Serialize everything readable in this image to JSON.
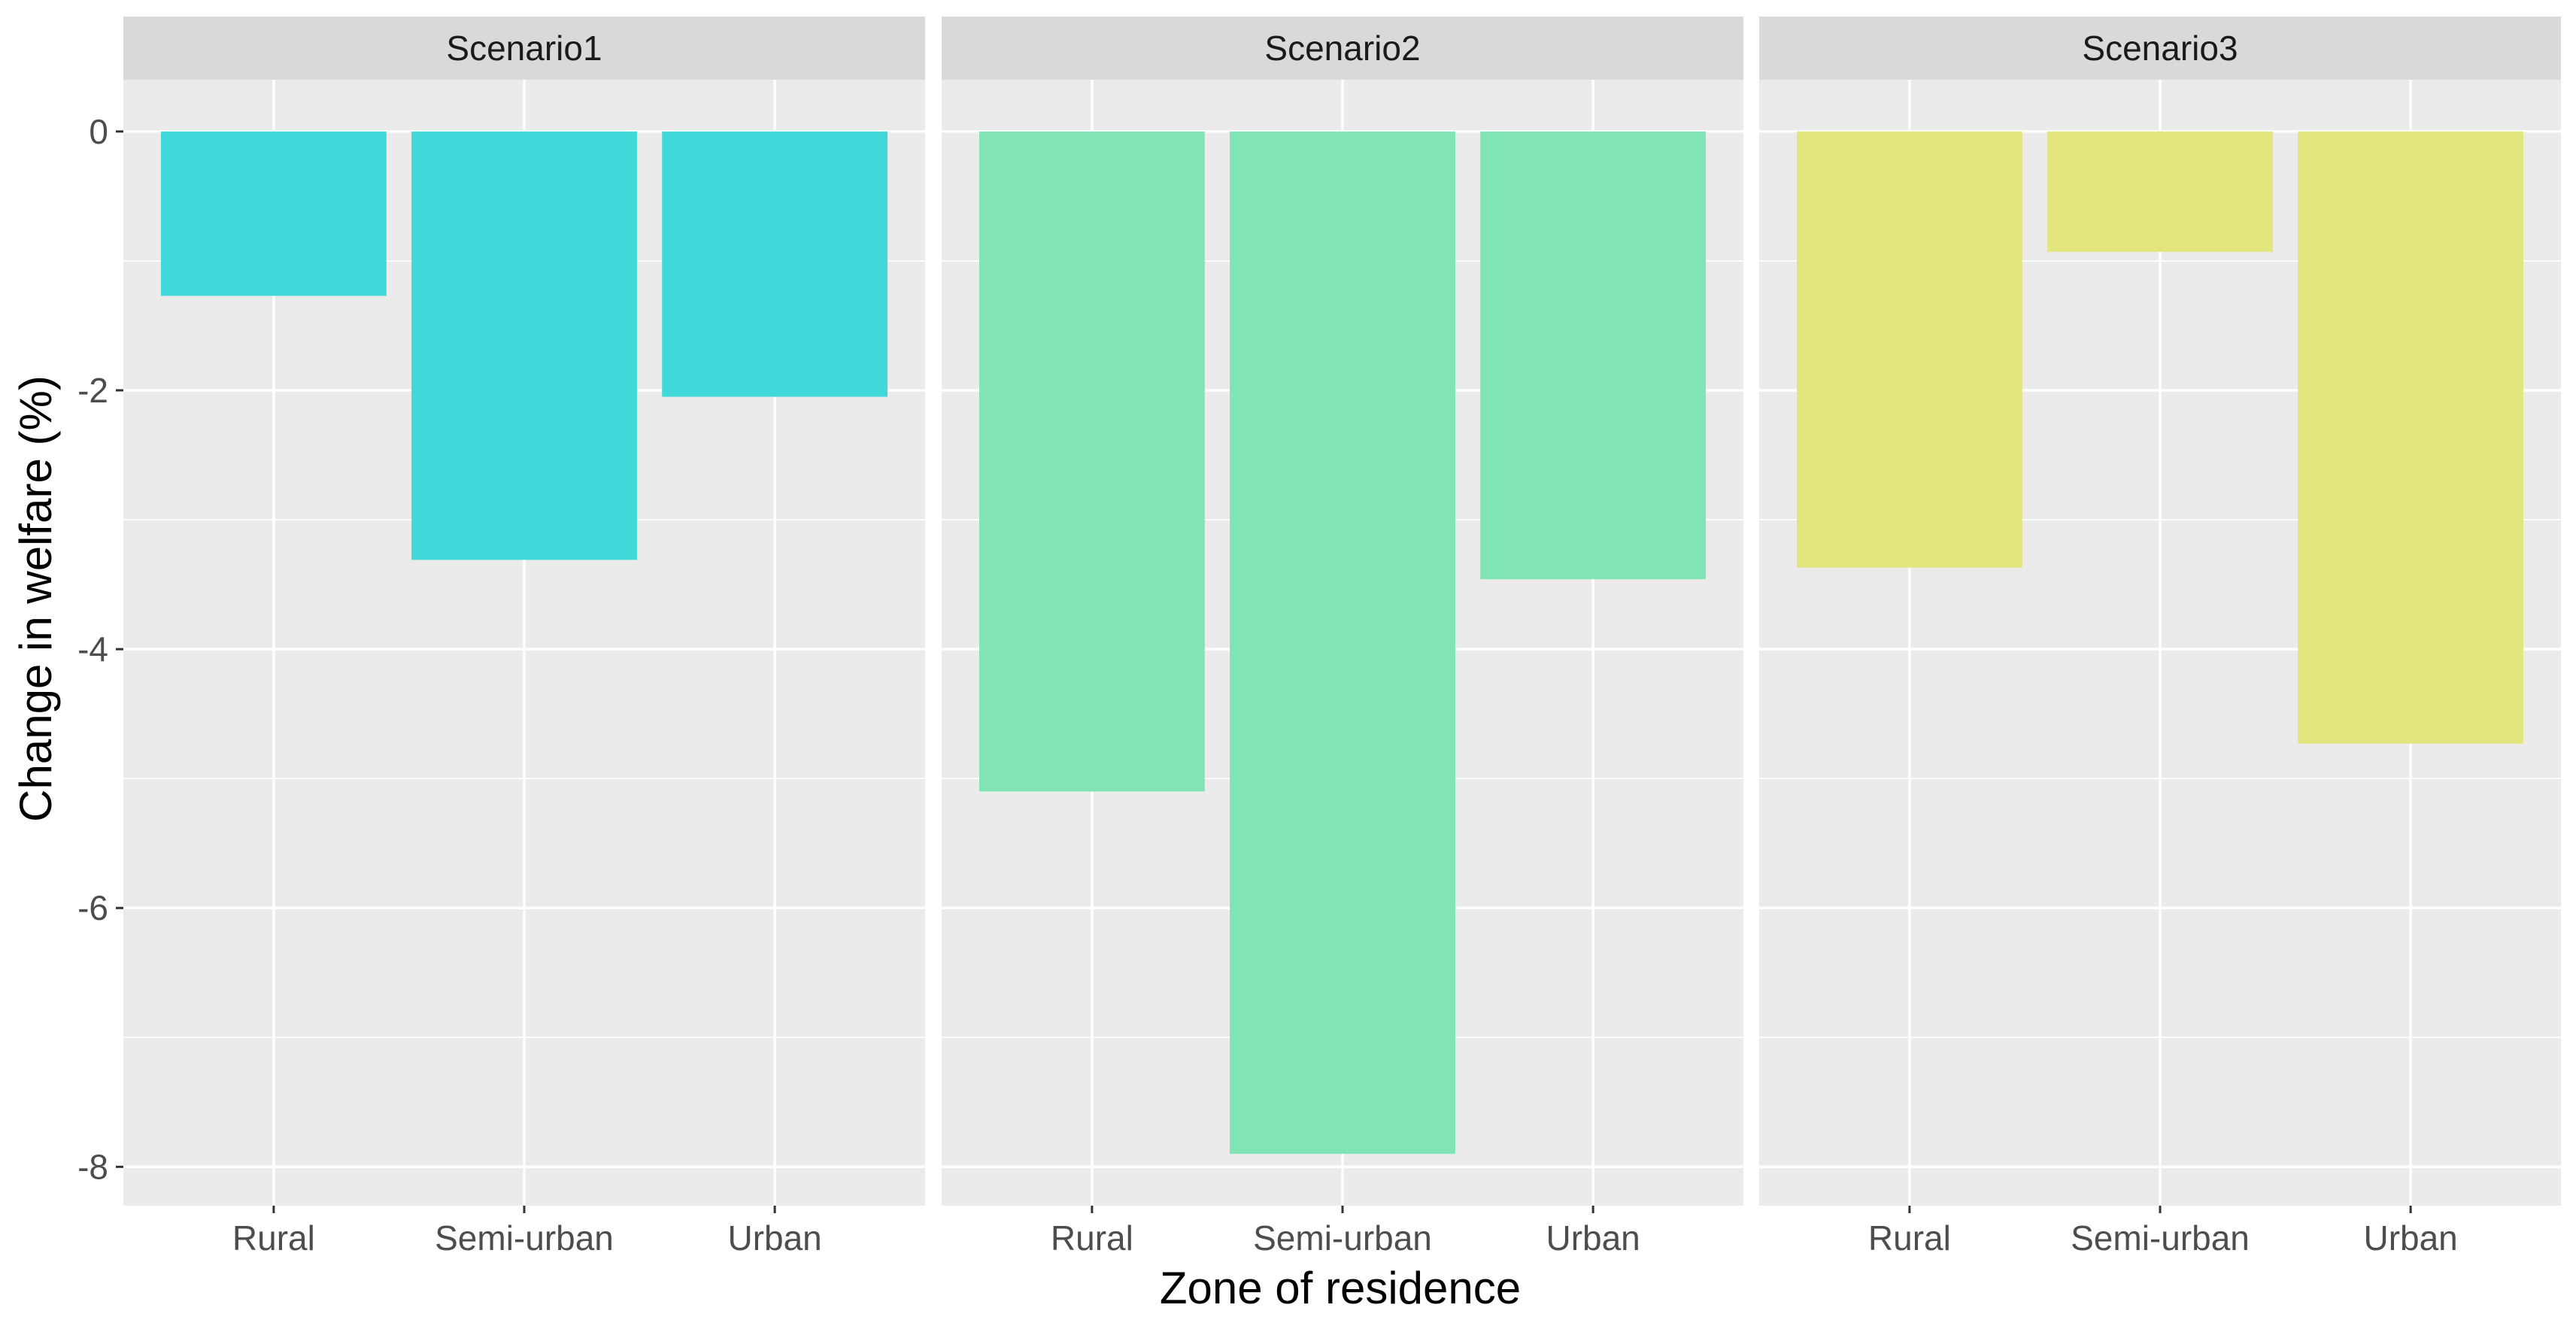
{
  "chart_data": {
    "type": "bar",
    "xlabel": "Zone of residence",
    "ylabel": "Change in welfare (%)",
    "ylim": [
      -8.3,
      0.4
    ],
    "yticks": [
      0,
      -2,
      -4,
      -6,
      -8
    ],
    "ytick_labels": [
      "0",
      "-2",
      "-4",
      "-6",
      "-8"
    ],
    "grid": true,
    "categories": [
      "Rural",
      "Semi-urban",
      "Urban"
    ],
    "panels": [
      {
        "name": "Scenario1",
        "color": "#40D8D8",
        "values": [
          -1.27,
          -3.31,
          -2.05
        ]
      },
      {
        "name": "Scenario2",
        "color": "#80E4B4",
        "values": [
          -5.1,
          -7.9,
          -3.46
        ]
      },
      {
        "name": "Scenario3",
        "color": "#E3E57E",
        "values": [
          -3.37,
          -0.93,
          -4.73
        ]
      }
    ]
  },
  "colors": {
    "panel_background": "#EBEBEB",
    "strip_background": "#D9D9D9",
    "grid": "#FFFFFF"
  }
}
